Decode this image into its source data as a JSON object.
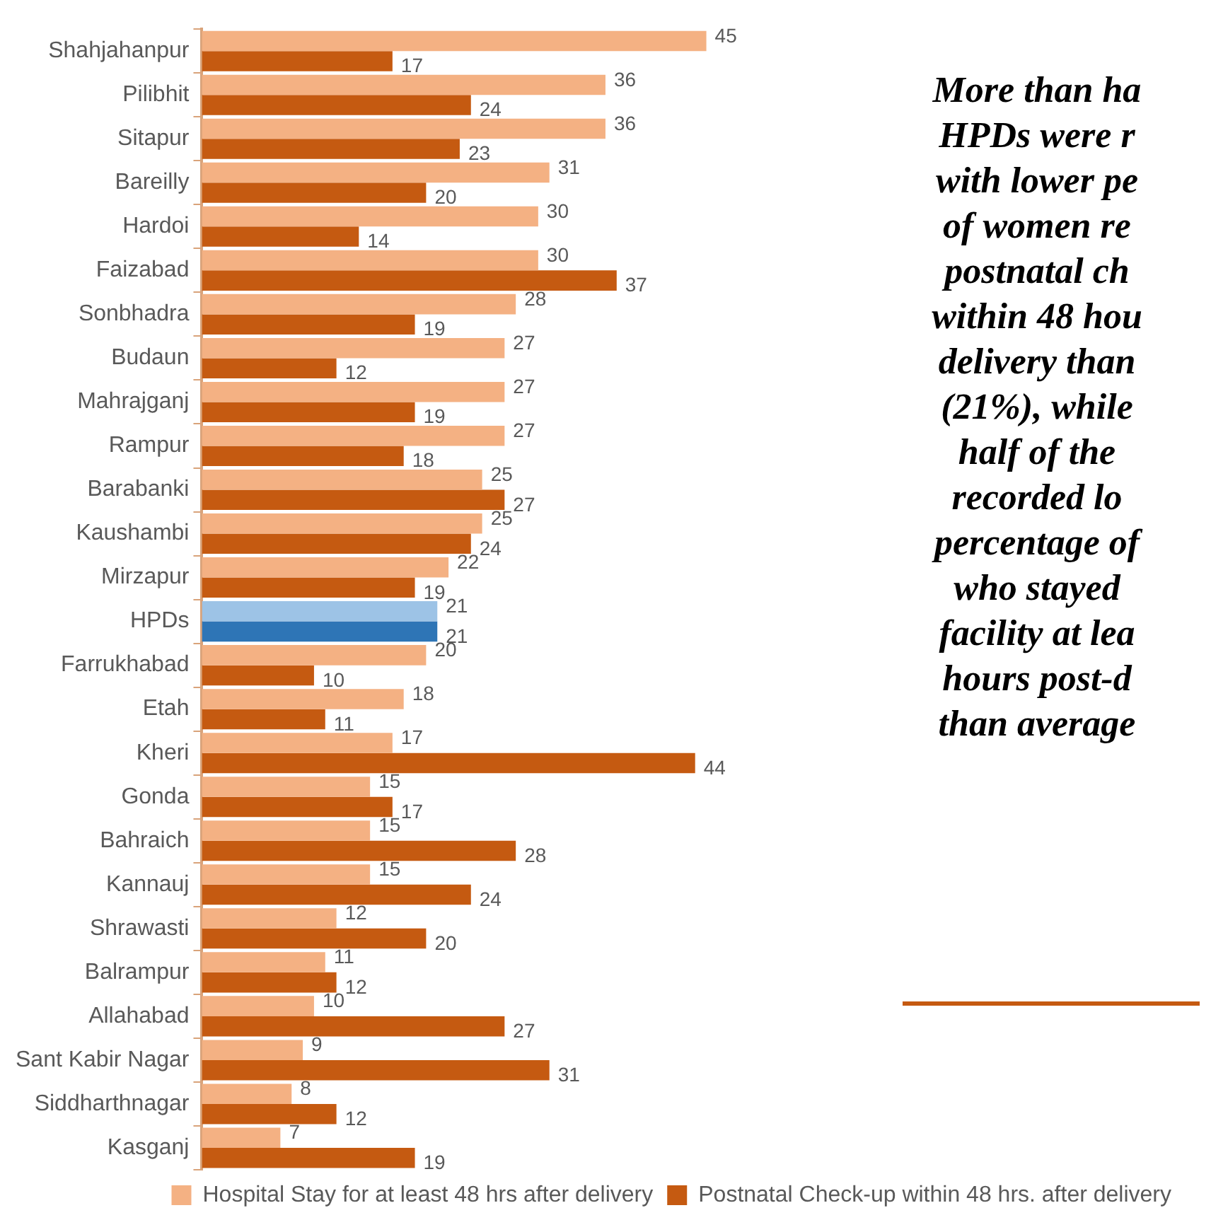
{
  "chart_data": {
    "type": "bar",
    "orientation": "horizontal",
    "data_labels": true,
    "legend": "bottom",
    "grid": false,
    "categories": [
      "Shahjahanpur",
      "Pilibhit",
      "Sitapur",
      "Bareilly",
      "Hardoi",
      "Faizabad",
      "Sonbhadra",
      "Budaun",
      "Mahrajganj",
      "Rampur",
      "Barabanki",
      "Kaushambi",
      "Mirzapur",
      "HPDs",
      "Farrukhabad",
      "Etah",
      "Kheri",
      "Gonda",
      "Bahraich",
      "Kannauj",
      "Shrawasti",
      "Balrampur",
      "Allahabad",
      "Sant Kabir Nagar",
      "Siddharthnagar",
      "Kasganj"
    ],
    "series": [
      {
        "name": "Hospital Stay for at least 48 hrs after delivery",
        "color": "#f4b183",
        "colors": [
          "#f4b183",
          "#f4b183",
          "#f4b183",
          "#f4b183",
          "#f4b183",
          "#f4b183",
          "#f4b183",
          "#f4b183",
          "#f4b183",
          "#f4b183",
          "#f4b183",
          "#f4b183",
          "#f4b183",
          "#9dc3e6",
          "#f4b183",
          "#f4b183",
          "#f4b183",
          "#f4b183",
          "#f4b183",
          "#f4b183",
          "#f4b183",
          "#f4b183",
          "#f4b183",
          "#f4b183",
          "#f4b183",
          "#f4b183"
        ],
        "values": [
          45,
          36,
          36,
          31,
          30,
          30,
          28,
          27,
          27,
          27,
          25,
          25,
          22,
          21,
          20,
          18,
          17,
          15,
          15,
          15,
          12,
          11,
          10,
          9,
          8,
          7
        ]
      },
      {
        "name": "Postnatal Check-up within 48 hrs. after delivery",
        "color": "#c55a11",
        "colors": [
          "#c55a11",
          "#c55a11",
          "#c55a11",
          "#c55a11",
          "#c55a11",
          "#c55a11",
          "#c55a11",
          "#c55a11",
          "#c55a11",
          "#c55a11",
          "#c55a11",
          "#c55a11",
          "#c55a11",
          "#2e75b6",
          "#c55a11",
          "#c55a11",
          "#c55a11",
          "#c55a11",
          "#c55a11",
          "#c55a11",
          "#c55a11",
          "#c55a11",
          "#c55a11",
          "#c55a11",
          "#c55a11",
          "#c55a11"
        ],
        "values": [
          17,
          24,
          23,
          20,
          14,
          37,
          19,
          12,
          19,
          18,
          27,
          24,
          19,
          21,
          10,
          11,
          44,
          17,
          28,
          24,
          20,
          12,
          27,
          31,
          12,
          19
        ]
      }
    ],
    "annotations": [
      "More than ha\nHPDs were r\nwith lower pe\nof women re\npostnatal ch\nwithin 48 hou\ndelivery than\n(21%), while\nhalf of the\nrecorded lo\npercentage of\nwho stayed\nfacility at lea\nhours post-d\nthan average"
    ]
  }
}
